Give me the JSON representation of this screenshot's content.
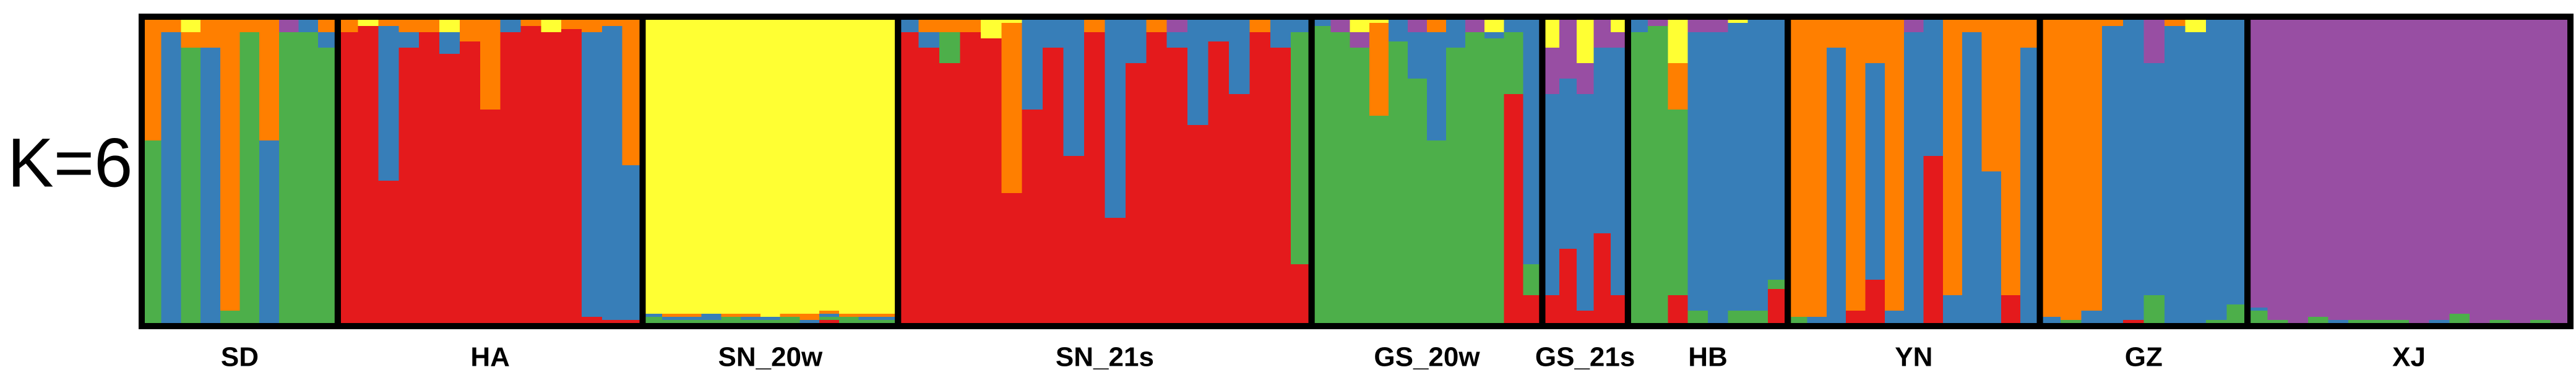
{
  "chart_data": {
    "type": "structure",
    "title": "K=6",
    "ylim": [
      0,
      1
    ],
    "colors": [
      "#e41a1c",
      "#4daf4a",
      "#377eb8",
      "#ff7f00",
      "#984ea3",
      "#ffff33"
    ],
    "groups": [
      {
        "label": "SD",
        "series": [
          {
            "values": [
              0,
              0,
              0,
              0,
              0,
              0,
              0,
              0,
              0,
              0
            ]
          },
          {
            "values": [
              0.6,
              0,
              0.9,
              0,
              0.05,
              0.95,
              0,
              0.95,
              0.95,
              0.9
            ]
          },
          {
            "values": [
              0,
              0.95,
              0,
              0.9,
              0,
              0,
              0.6,
              0,
              0.05,
              0.05
            ]
          },
          {
            "values": [
              0.4,
              0.05,
              0.05,
              0.1,
              0.95,
              0.05,
              0.4,
              0,
              0,
              0.05
            ]
          },
          {
            "values": [
              0,
              0,
              0,
              0,
              0,
              0,
              0,
              0.05,
              0,
              0
            ]
          },
          {
            "values": [
              0,
              0,
              0.05,
              0,
              0,
              0,
              0,
              0,
              0,
              0
            ]
          }
        ]
      },
      {
        "label": "HA",
        "series": [
          {
            "values": [
              0.95,
              0.97,
              0.47,
              0.9,
              0.95,
              0.88,
              0.92,
              0.7,
              0.95,
              0.97,
              0.95,
              0.96,
              0.03,
              0.02,
              0.02
            ]
          },
          {
            "values": [
              0,
              0,
              0,
              0,
              0,
              0,
              0,
              0,
              0,
              0,
              0,
              0,
              0,
              0,
              0
            ]
          },
          {
            "values": [
              0,
              0,
              0.5,
              0.05,
              0,
              0.07,
              0,
              0,
              0.05,
              0,
              0,
              0,
              0.92,
              0.95,
              0.5
            ]
          },
          {
            "values": [
              0.05,
              0,
              0.03,
              0.05,
              0.05,
              0,
              0.08,
              0.3,
              0,
              0.03,
              0,
              0.04,
              0.05,
              0.03,
              0.48
            ]
          },
          {
            "values": [
              0,
              0,
              0,
              0,
              0,
              0,
              0,
              0,
              0,
              0,
              0,
              0,
              0,
              0,
              0
            ]
          },
          {
            "values": [
              0,
              0.03,
              0,
              0,
              0,
              0.05,
              0,
              0,
              0,
              0,
              0.05,
              0,
              0,
              0,
              0
            ]
          }
        ]
      },
      {
        "label": "SN_20w",
        "series": [
          {
            "values": [
              0.01,
              0.01,
              0,
              0.01,
              0.01,
              0,
              0.01,
              0.01,
              0,
              0.02,
              0.01,
              0,
              0.01
            ]
          },
          {
            "values": [
              0.02,
              0.01,
              0.02,
              0.01,
              0.02,
              0.02,
              0.01,
              0.02,
              0.01,
              0.01,
              0.02,
              0.02,
              0.01
            ]
          },
          {
            "values": [
              0.01,
              0.01,
              0.01,
              0.02,
              0,
              0.01,
              0.01,
              0,
              0.01,
              0.01,
              0,
              0.01,
              0.01
            ]
          },
          {
            "values": [
              0,
              0.01,
              0.01,
              0,
              0.01,
              0.01,
              0,
              0.01,
              0.02,
              0.01,
              0.01,
              0.01,
              0.01
            ]
          },
          {
            "values": [
              0,
              0,
              0,
              0,
              0,
              0,
              0,
              0,
              0,
              0,
              0,
              0,
              0
            ]
          },
          {
            "values": [
              0.96,
              0.96,
              0.96,
              0.96,
              0.96,
              0.96,
              0.97,
              0.96,
              0.96,
              0.95,
              0.96,
              0.96,
              0.96
            ]
          }
        ]
      },
      {
        "label": "SN_21s",
        "series": [
          {
            "values": [
              0.95,
              0.9,
              0.85,
              0.95,
              0.93,
              0.43,
              0.7,
              0.9,
              0.55,
              0.95,
              0.35,
              0.85,
              0.95,
              0.9,
              0.65,
              0.92,
              0.75,
              0.95,
              0.9,
              0.2
            ]
          },
          {
            "values": [
              0,
              0,
              0.1,
              0,
              0,
              0,
              0,
              0,
              0,
              0,
              0,
              0,
              0,
              0,
              0,
              0,
              0,
              0,
              0,
              0.75
            ]
          },
          {
            "values": [
              0.05,
              0.05,
              0,
              0,
              0,
              0,
              0.3,
              0.1,
              0.45,
              0,
              0.65,
              0.15,
              0,
              0.05,
              0.35,
              0.08,
              0.25,
              0,
              0.1,
              0.05
            ]
          },
          {
            "values": [
              0,
              0.05,
              0.05,
              0.05,
              0,
              0.55,
              0,
              0,
              0,
              0.05,
              0,
              0,
              0.05,
              0,
              0,
              0,
              0,
              0.05,
              0,
              0
            ]
          },
          {
            "values": [
              0,
              0,
              0,
              0,
              0,
              0,
              0,
              0,
              0,
              0,
              0,
              0,
              0,
              0.05,
              0,
              0,
              0,
              0,
              0,
              0
            ]
          },
          {
            "values": [
              0,
              0,
              0,
              0,
              0.07,
              0.02,
              0,
              0,
              0,
              0,
              0,
              0,
              0,
              0,
              0,
              0,
              0,
              0,
              0,
              0
            ]
          }
        ]
      },
      {
        "label": "GS_20w",
        "series": [
          {
            "values": [
              0,
              0,
              0,
              0,
              0,
              0,
              0,
              0,
              0,
              0,
              0.75,
              0.1
            ]
          },
          {
            "values": [
              0.97,
              0.95,
              0.9,
              0.68,
              0.92,
              0.8,
              0.6,
              0.9,
              0.95,
              0.93,
              0.2,
              0.1
            ]
          },
          {
            "values": [
              0.03,
              0,
              0,
              0,
              0.08,
              0.15,
              0.35,
              0.1,
              0,
              0.02,
              0.05,
              0.8
            ]
          },
          {
            "values": [
              0,
              0,
              0,
              0.3,
              0,
              0,
              0.05,
              0,
              0,
              0,
              0,
              0
            ]
          },
          {
            "values": [
              0,
              0.05,
              0.05,
              0,
              0,
              0.05,
              0,
              0,
              0.05,
              0,
              0,
              0
            ]
          },
          {
            "values": [
              0,
              0,
              0.05,
              0.02,
              0,
              0,
              0,
              0,
              0,
              0.05,
              0,
              0
            ]
          }
        ]
      },
      {
        "label": "GS_21s",
        "series": [
          {
            "values": [
              0.1,
              0.25,
              0.05,
              0.3,
              0.1
            ]
          },
          {
            "values": [
              0,
              0,
              0,
              0,
              0
            ]
          },
          {
            "values": [
              0.65,
              0.55,
              0.7,
              0.6,
              0.8
            ]
          },
          {
            "values": [
              0,
              0,
              0,
              0,
              0
            ]
          },
          {
            "values": [
              0.15,
              0.2,
              0.1,
              0.1,
              0.05
            ]
          },
          {
            "values": [
              0.1,
              0,
              0.15,
              0,
              0.05
            ]
          }
        ]
      },
      {
        "label": "HB",
        "series": [
          {
            "values": [
              0,
              0,
              0.1,
              0,
              0,
              0,
              0,
              0.12
            ]
          },
          {
            "values": [
              0.95,
              0.97,
              0.6,
              0.05,
              0,
              0.05,
              0.05,
              0.03
            ]
          },
          {
            "values": [
              0.05,
              0,
              0,
              0.9,
              0.95,
              0.93,
              0.95,
              0.85
            ]
          },
          {
            "values": [
              0,
              0,
              0.15,
              0,
              0,
              0,
              0,
              0
            ]
          },
          {
            "values": [
              0,
              0.03,
              0,
              0.05,
              0.05,
              0,
              0,
              0
            ]
          },
          {
            "values": [
              0,
              0,
              0.15,
              0,
              0,
              0.02,
              0,
              0
            ]
          }
        ]
      },
      {
        "label": "YN",
        "series": [
          {
            "values": [
              0,
              0,
              0,
              0.05,
              0.15,
              0,
              0,
              0.55,
              0,
              0,
              0,
              0.1,
              0
            ]
          },
          {
            "values": [
              0.03,
              0,
              0,
              0,
              0,
              0,
              0,
              0,
              0,
              0,
              0,
              0,
              0
            ]
          },
          {
            "values": [
              0,
              0.03,
              0.9,
              0,
              0.7,
              0.05,
              0.95,
              0.45,
              0.1,
              0.95,
              0.5,
              0,
              0.9
            ]
          },
          {
            "values": [
              0.97,
              0.97,
              0.1,
              0.95,
              0.15,
              0.95,
              0,
              0,
              0.9,
              0.05,
              0.5,
              0.9,
              0.1
            ]
          },
          {
            "values": [
              0,
              0,
              0,
              0,
              0,
              0,
              0.05,
              0,
              0,
              0,
              0,
              0,
              0
            ]
          },
          {
            "values": [
              0,
              0,
              0,
              0,
              0,
              0,
              0,
              0,
              0,
              0,
              0,
              0,
              0
            ]
          }
        ]
      },
      {
        "label": "GZ",
        "series": [
          {
            "values": [
              0,
              0,
              0,
              0,
              0.02,
              0,
              0,
              0,
              0,
              0
            ]
          },
          {
            "values": [
              0,
              0.02,
              0,
              0,
              0,
              0.1,
              0,
              0,
              0.02,
              0.07
            ]
          },
          {
            "values": [
              0.03,
              0,
              0.05,
              0.97,
              0.98,
              0.75,
              0.97,
              0.95,
              0.98,
              0.93
            ]
          },
          {
            "values": [
              0.97,
              0.98,
              0.95,
              0.03,
              0,
              0,
              0.03,
              0,
              0,
              0
            ]
          },
          {
            "values": [
              0,
              0,
              0,
              0,
              0,
              0.15,
              0,
              0,
              0,
              0
            ]
          },
          {
            "values": [
              0,
              0,
              0,
              0,
              0,
              0,
              0,
              0.05,
              0,
              0
            ]
          }
        ]
      },
      {
        "label": "XJ",
        "series": [
          {
            "values": [
              0,
              0,
              0,
              0,
              0,
              0,
              0.01,
              0,
              0,
              0,
              0,
              0,
              0,
              0,
              0,
              0
            ]
          },
          {
            "values": [
              0.05,
              0.02,
              0.01,
              0.03,
              0.01,
              0.02,
              0.01,
              0.02,
              0.01,
              0.01,
              0.04,
              0.01,
              0.02,
              0.01,
              0.02,
              0.01
            ]
          },
          {
            "values": [
              0.01,
              0,
              0,
              0,
              0.01,
              0,
              0,
              0,
              0,
              0.01,
              0,
              0,
              0,
              0,
              0,
              0
            ]
          },
          {
            "values": [
              0,
              0,
              0,
              0,
              0,
              0,
              0,
              0,
              0,
              0,
              0,
              0,
              0,
              0,
              0,
              0
            ]
          },
          {
            "values": [
              0.94,
              0.98,
              0.99,
              0.97,
              0.98,
              0.98,
              0.98,
              0.98,
              0.99,
              0.98,
              0.96,
              0.99,
              0.98,
              0.99,
              0.98,
              0.99
            ]
          },
          {
            "values": [
              0,
              0,
              0,
              0,
              0,
              0,
              0,
              0,
              0,
              0,
              0,
              0,
              0,
              0,
              0,
              0
            ]
          }
        ]
      }
    ]
  }
}
